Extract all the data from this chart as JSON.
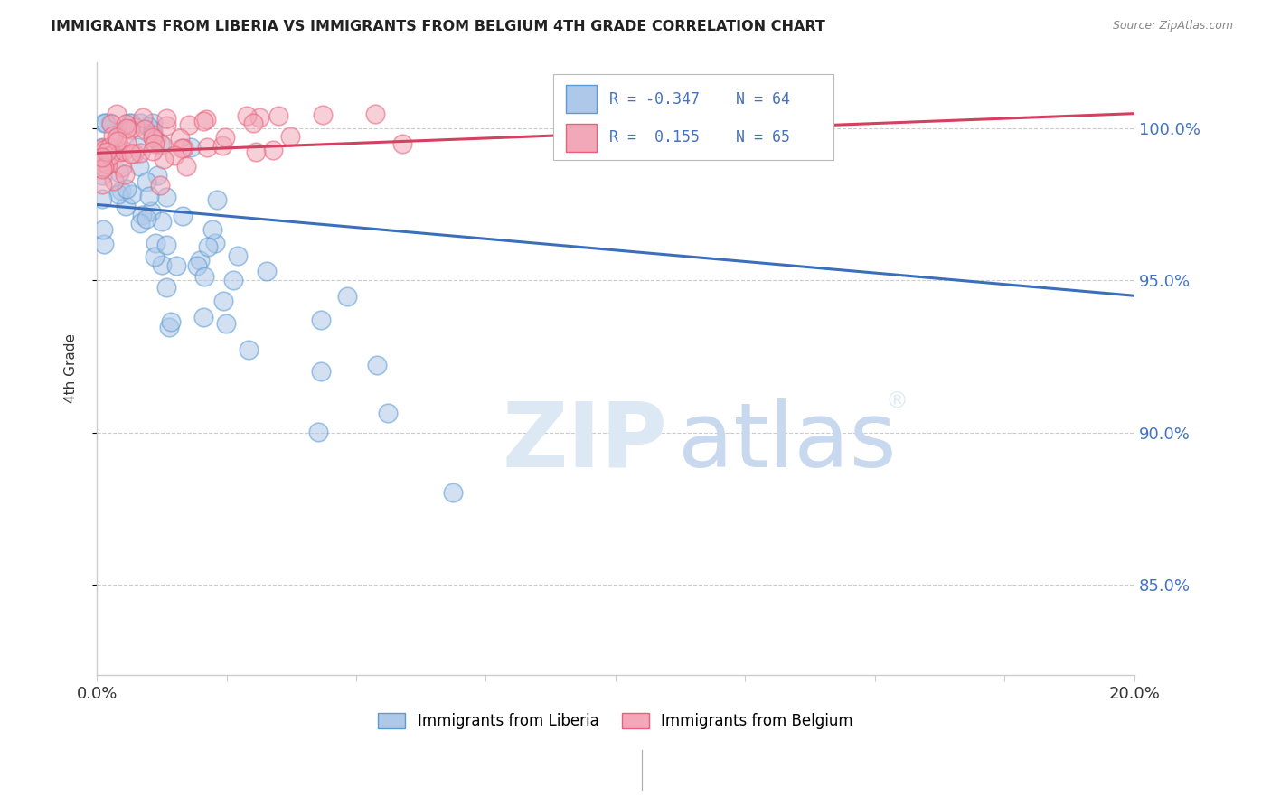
{
  "title": "IMMIGRANTS FROM LIBERIA VS IMMIGRANTS FROM BELGIUM 4TH GRADE CORRELATION CHART",
  "source": "Source: ZipAtlas.com",
  "ylabel": "4th Grade",
  "ylim": [
    0.82,
    1.022
  ],
  "xlim": [
    0.0,
    0.2
  ],
  "yticks": [
    0.85,
    0.9,
    0.95,
    1.0
  ],
  "ytick_labels": [
    "85.0%",
    "90.0%",
    "95.0%",
    "100.0%"
  ],
  "liberia_R": -0.347,
  "liberia_N": 64,
  "belgium_R": 0.155,
  "belgium_N": 65,
  "liberia_color": "#adc8e8",
  "belgium_color": "#f2a8b8",
  "liberia_edge_color": "#5b9bd5",
  "belgium_edge_color": "#e8607a",
  "liberia_line_color": "#3a6fbb",
  "belgium_line_color": "#d44060",
  "lib_line_x0": 0.0,
  "lib_line_y0": 0.975,
  "lib_line_x1": 0.2,
  "lib_line_y1": 0.945,
  "bel_line_x0": 0.0,
  "bel_line_y0": 0.992,
  "bel_line_x1": 0.2,
  "bel_line_y1": 1.005,
  "watermark_color": "#dde8f5",
  "grid_color": "#cccccc",
  "spine_color": "#cccccc",
  "title_color": "#222222",
  "source_color": "#888888",
  "axis_label_color": "#333333",
  "tick_label_color": "#4472c4",
  "legend_R_color": "#4472c4"
}
